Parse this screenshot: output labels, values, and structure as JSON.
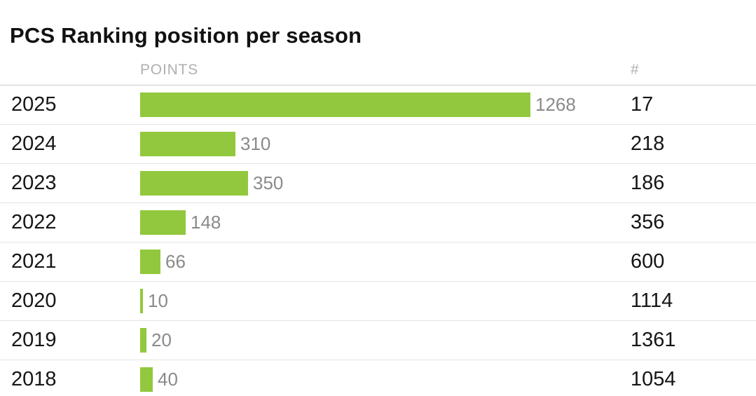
{
  "page": {
    "title": "PCS Ranking position per season"
  },
  "table": {
    "headers": {
      "points": "POINTS",
      "rank": "#"
    }
  },
  "chart_data": {
    "type": "bar",
    "orientation": "horizontal",
    "title": "PCS Ranking position per season",
    "categories": [
      "2025",
      "2024",
      "2023",
      "2022",
      "2021",
      "2020",
      "2019",
      "2018"
    ],
    "series": [
      {
        "name": "POINTS",
        "values": [
          1268,
          310,
          350,
          148,
          66,
          10,
          20,
          40
        ]
      },
      {
        "name": "#",
        "values": [
          17,
          218,
          186,
          356,
          600,
          1114,
          1361,
          1054
        ]
      }
    ],
    "xlim": [
      0,
      1268
    ],
    "grid": false,
    "legend": "none",
    "bar_color": "#92c83d",
    "value_label_color": "#8a8a8a",
    "rows": [
      {
        "year": "2025",
        "points": 1268,
        "rank": 17
      },
      {
        "year": "2024",
        "points": 310,
        "rank": 218
      },
      {
        "year": "2023",
        "points": 350,
        "rank": 186
      },
      {
        "year": "2022",
        "points": 148,
        "rank": 356
      },
      {
        "year": "2021",
        "points": 66,
        "rank": 600
      },
      {
        "year": "2020",
        "points": 10,
        "rank": 1114
      },
      {
        "year": "2019",
        "points": 20,
        "rank": 1361
      },
      {
        "year": "2018",
        "points": 40,
        "rank": 1054
      }
    ]
  }
}
